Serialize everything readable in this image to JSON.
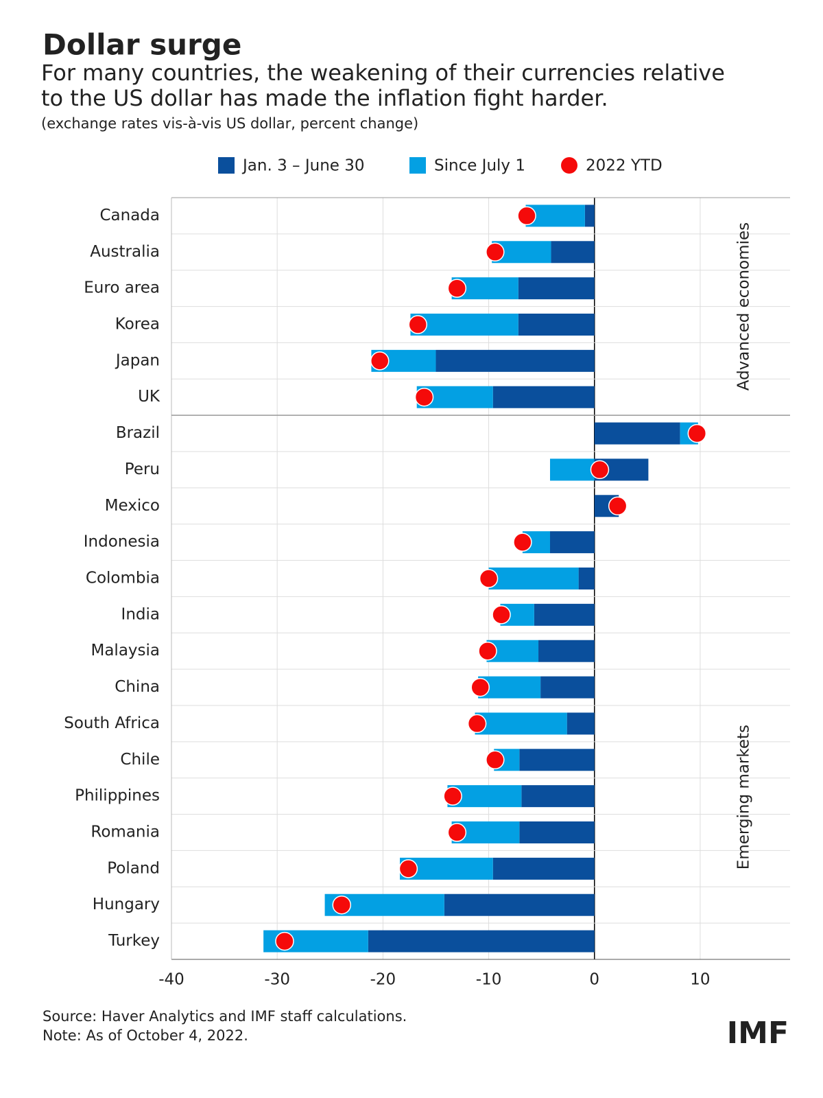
{
  "chart_data": {
    "type": "stacked-bar-horizontal",
    "title": "Dollar surge",
    "subtitle": [
      "For many countries, the weakening of their currencies relative",
      "to the US dollar has made the inflation fight harder."
    ],
    "units_note": "(exchange rates vis-à-vis US dollar, percent change)",
    "categories": [
      "Canada",
      "Australia",
      "Euro area",
      "Korea",
      "Japan",
      "UK",
      "Brazil",
      "Peru",
      "Mexico",
      "Indonesia",
      "Colombia",
      "India",
      "Malaysia",
      "China",
      "South Africa",
      "Chile",
      "Philippines",
      "Romania",
      "Poland",
      "Hungary",
      "Turkey"
    ],
    "groups": [
      {
        "name": "Advanced economies",
        "size": 6
      },
      {
        "name": "Emerging markets",
        "size": 15
      }
    ],
    "series": [
      {
        "name": "Jan. 3 – June 30",
        "color": "#0a4f9c",
        "values": [
          -0.9,
          -4.1,
          -7.2,
          -7.2,
          -15.0,
          -9.6,
          8.1,
          5.1,
          2.3,
          -4.2,
          -1.5,
          -5.7,
          -5.3,
          -5.1,
          -2.6,
          -7.1,
          -6.9,
          -7.1,
          -9.6,
          -14.2,
          -21.4
        ]
      },
      {
        "name": "Since July 1",
        "color": "#03a0e3",
        "values": [
          -5.6,
          -5.6,
          -6.3,
          -10.2,
          -6.1,
          -7.2,
          1.7,
          -4.2,
          0,
          -2.6,
          -8.5,
          -3.2,
          -4.9,
          -5.9,
          -8.7,
          -2.4,
          -7.0,
          -6.4,
          -8.8,
          -11.3,
          -9.9
        ]
      }
    ],
    "points": {
      "name": "2022 YTD",
      "color": "#f50a0a",
      "values": [
        -6.4,
        -9.4,
        -13.0,
        -16.7,
        -20.3,
        -16.1,
        9.7,
        0.5,
        2.2,
        -6.8,
        -10.0,
        -8.8,
        -10.1,
        -10.8,
        -11.1,
        -9.4,
        -13.4,
        -13.0,
        -17.6,
        -23.9,
        -29.3
      ]
    },
    "xlim": [
      -40,
      18.5
    ],
    "xticks": [
      -40,
      -30,
      -20,
      -10,
      0,
      10
    ],
    "grid": true,
    "source": "Source: Haver Analytics and IMF staff calculations.",
    "note": "Note: As of October 4, 2022.",
    "logo": "IMF"
  }
}
